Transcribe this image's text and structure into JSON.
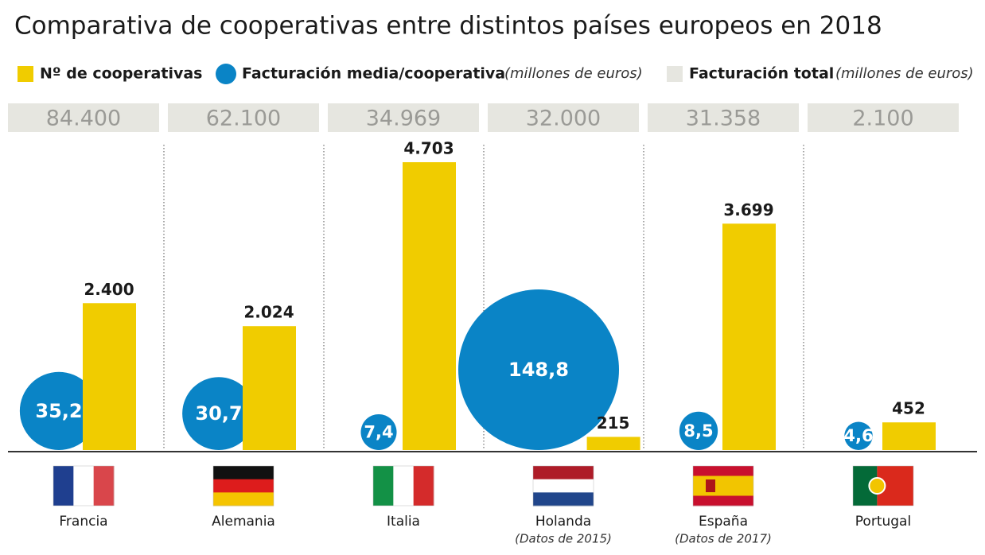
{
  "chart_data": {
    "type": "bar",
    "title": "Comparativa de cooperativas entre distintos países europeos en 2018",
    "categories": [
      "Francia",
      "Alemania",
      "Italia",
      "Holanda",
      "España",
      "Portugal"
    ],
    "notes": [
      null,
      null,
      null,
      "(Datos de 2015)",
      "(Datos de 2017)",
      null
    ],
    "series": [
      {
        "name": "Nº de cooperativas",
        "color": "#f0cc00",
        "values": [
          2400,
          2024,
          4703,
          215,
          3699,
          452
        ],
        "value_labels": [
          "2.400",
          "2.024",
          "4.703",
          "215",
          "3.699",
          "452"
        ]
      },
      {
        "name": "Facturación media/cooperativa",
        "unit": "(millones de euros)",
        "color": "#0a84c6",
        "values": [
          35.2,
          30.7,
          7.4,
          148.8,
          8.5,
          4.6
        ],
        "value_labels": [
          "35,2",
          "30,7",
          "7,4",
          "148,8",
          "8,5",
          "4,6"
        ]
      },
      {
        "name": "Facturación total",
        "unit": "(millones de euros)",
        "color": "#e6e6e0",
        "values": [
          84400,
          62100,
          34969,
          32000,
          31358,
          2100
        ],
        "value_labels": [
          "84.400",
          "62.100",
          "34.969",
          "32.000",
          "31.358",
          "2.100"
        ]
      }
    ]
  }
}
